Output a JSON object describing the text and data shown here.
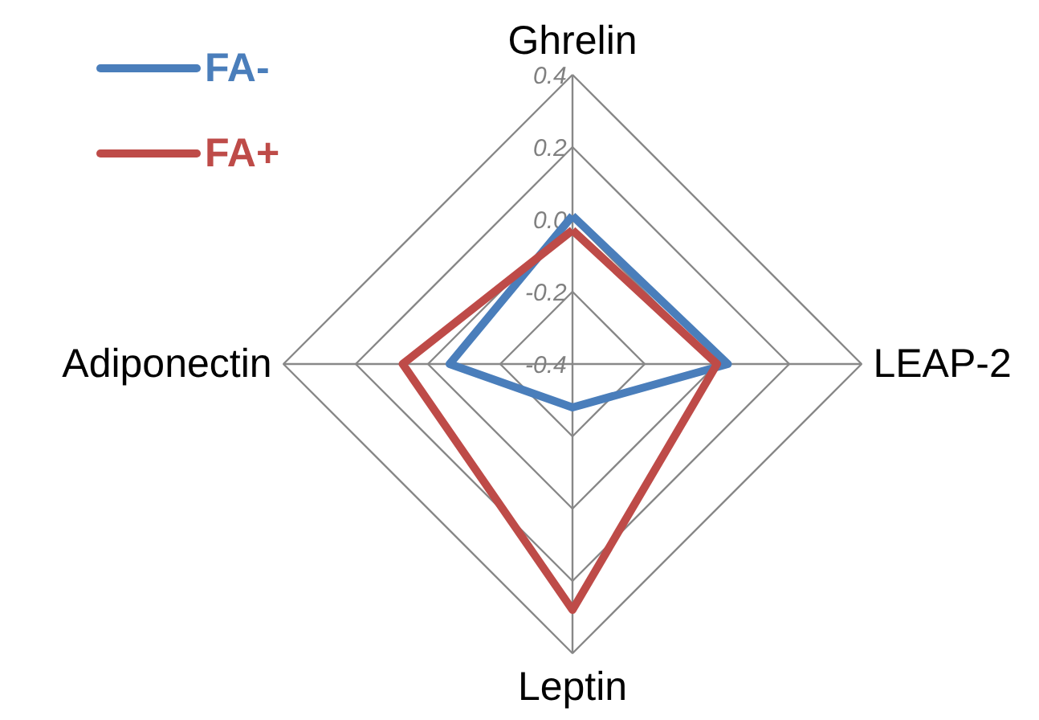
{
  "chart_data": {
    "type": "radar",
    "categories": [
      "Ghrelin",
      "LEAP-2",
      "Leptin",
      "Adiponectin"
    ],
    "series": [
      {
        "name": "FA-",
        "color": "#4a7ebb",
        "values": [
          0.01,
          0.03,
          -0.28,
          -0.06
        ]
      },
      {
        "name": "FA+",
        "color": "#be4b48",
        "values": [
          -0.03,
          0.0,
          0.28,
          0.07
        ]
      }
    ],
    "ylim": [
      -0.4,
      0.4
    ],
    "yticks": [
      -0.4,
      -0.2,
      {
        "value": 0,
        "label": "0.0"
      },
      0.2,
      0.4
    ],
    "grid": true,
    "legend": "top left"
  }
}
